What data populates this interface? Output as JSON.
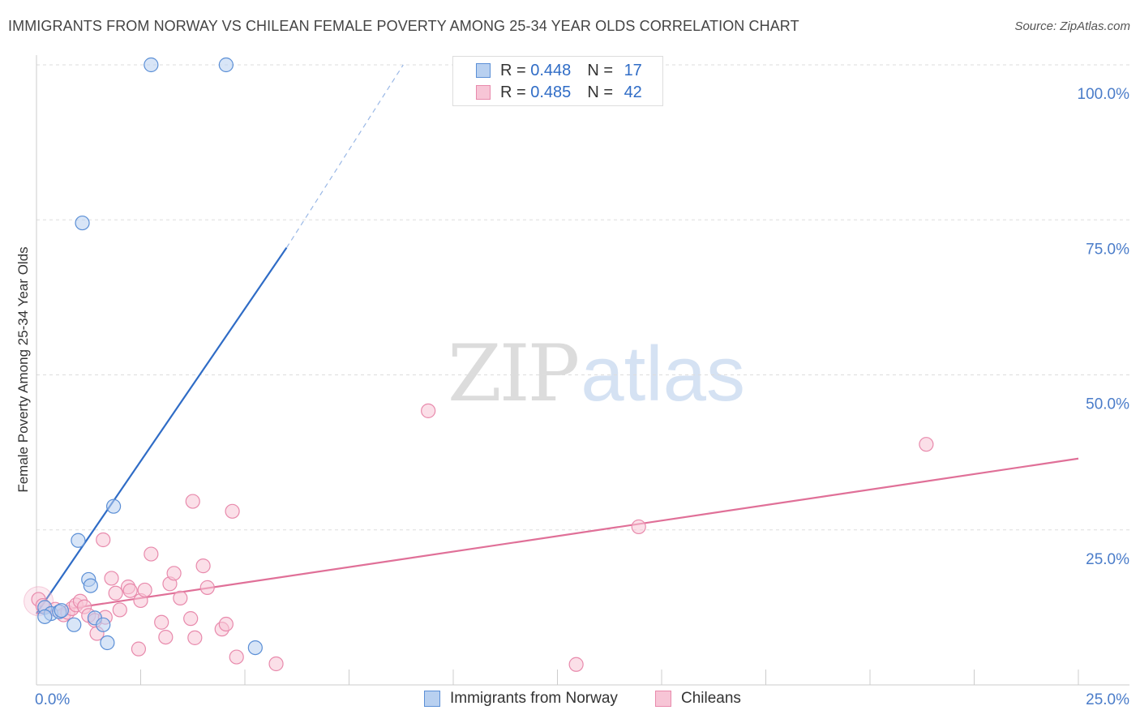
{
  "title": "IMMIGRANTS FROM NORWAY VS CHILEAN FEMALE POVERTY AMONG 25-34 YEAR OLDS CORRELATION CHART",
  "source": "Source: ZipAtlas.com",
  "watermark": {
    "zip": "ZIP",
    "atlas": "atlas"
  },
  "legend": [
    {
      "r_label": "R =",
      "r_value": "0.448",
      "n_label": "N =",
      "n_value": "17"
    },
    {
      "r_label": "R =",
      "r_value": "0.485",
      "n_label": "N =",
      "n_value": "42"
    }
  ],
  "chart_data": {
    "type": "scatter",
    "xlabel": "",
    "ylabel": "Female Poverty Among 25-34 Year Olds",
    "xlim": [
      0,
      25
    ],
    "ylim": [
      0,
      100
    ],
    "x_tick_labels": [
      {
        "value": 0,
        "label": "0.0%"
      },
      {
        "value": 25,
        "label": "25.0%"
      }
    ],
    "y_tick_labels": [
      {
        "value": 25,
        "label": "25.0%"
      },
      {
        "value": 50,
        "label": "50.0%"
      },
      {
        "value": 75,
        "label": "75.0%"
      },
      {
        "value": 100,
        "label": "100.0%"
      }
    ],
    "x_minor_ticks": [
      2.5,
      5,
      7.5,
      10,
      12.5,
      15,
      17.5,
      20,
      22.5,
      25
    ],
    "grid": true,
    "legend_position": "top-center",
    "series": [
      {
        "name": "Immigrants from Norway",
        "color": "#5b8fd6",
        "fill": "#b8d0f0",
        "trend": {
          "x0": 0.0,
          "y0": 11.5,
          "x1": 6.0,
          "y1": 70.5,
          "dash_to_x": 8.8,
          "dash_to_y": 100,
          "color": "#2f6cc6"
        },
        "points": [
          {
            "x": 2.75,
            "y": 100
          },
          {
            "x": 4.55,
            "y": 100
          },
          {
            "x": 1.1,
            "y": 74.5
          },
          {
            "x": 1.85,
            "y": 28.8
          },
          {
            "x": 1.0,
            "y": 23.3
          },
          {
            "x": 1.25,
            "y": 17.0
          },
          {
            "x": 1.3,
            "y": 16.0
          },
          {
            "x": 0.2,
            "y": 12.5
          },
          {
            "x": 0.35,
            "y": 11.5
          },
          {
            "x": 0.55,
            "y": 11.8
          },
          {
            "x": 0.6,
            "y": 12.0
          },
          {
            "x": 0.2,
            "y": 11.0
          },
          {
            "x": 1.4,
            "y": 10.8
          },
          {
            "x": 0.9,
            "y": 9.7
          },
          {
            "x": 1.6,
            "y": 9.7
          },
          {
            "x": 1.7,
            "y": 6.8
          },
          {
            "x": 5.25,
            "y": 6.0
          }
        ]
      },
      {
        "name": "Chileans",
        "color": "#e88aac",
        "fill": "#f7c5d6",
        "trend": {
          "x0": 0.0,
          "y0": 11.5,
          "x1": 25.0,
          "y1": 36.5,
          "color": "#e07098"
        },
        "points": [
          {
            "x": 0.05,
            "y": 13.8
          },
          {
            "x": 0.15,
            "y": 12.8
          },
          {
            "x": 0.45,
            "y": 12.2
          },
          {
            "x": 0.65,
            "y": 11.3
          },
          {
            "x": 0.75,
            "y": 11.7
          },
          {
            "x": 0.85,
            "y": 12.3
          },
          {
            "x": 0.95,
            "y": 12.9
          },
          {
            "x": 1.05,
            "y": 13.5
          },
          {
            "x": 1.15,
            "y": 12.6
          },
          {
            "x": 1.25,
            "y": 11.2
          },
          {
            "x": 1.4,
            "y": 10.4
          },
          {
            "x": 1.45,
            "y": 8.3
          },
          {
            "x": 1.6,
            "y": 23.4
          },
          {
            "x": 1.65,
            "y": 10.9
          },
          {
            "x": 1.8,
            "y": 17.2
          },
          {
            "x": 1.9,
            "y": 14.8
          },
          {
            "x": 2.0,
            "y": 12.1
          },
          {
            "x": 2.2,
            "y": 15.8
          },
          {
            "x": 2.25,
            "y": 15.2
          },
          {
            "x": 2.45,
            "y": 5.8
          },
          {
            "x": 2.5,
            "y": 13.6
          },
          {
            "x": 2.6,
            "y": 15.3
          },
          {
            "x": 2.75,
            "y": 21.1
          },
          {
            "x": 3.0,
            "y": 10.1
          },
          {
            "x": 3.1,
            "y": 7.7
          },
          {
            "x": 3.2,
            "y": 16.3
          },
          {
            "x": 3.3,
            "y": 18.0
          },
          {
            "x": 3.45,
            "y": 14.0
          },
          {
            "x": 3.7,
            "y": 10.7
          },
          {
            "x": 3.75,
            "y": 29.6
          },
          {
            "x": 3.8,
            "y": 7.6
          },
          {
            "x": 4.0,
            "y": 19.2
          },
          {
            "x": 4.1,
            "y": 15.7
          },
          {
            "x": 4.45,
            "y": 9.0
          },
          {
            "x": 4.55,
            "y": 9.8
          },
          {
            "x": 4.7,
            "y": 28.0
          },
          {
            "x": 4.8,
            "y": 4.5
          },
          {
            "x": 5.75,
            "y": 3.4
          },
          {
            "x": 9.4,
            "y": 44.2
          },
          {
            "x": 12.95,
            "y": 3.3
          },
          {
            "x": 14.45,
            "y": 25.5
          },
          {
            "x": 21.35,
            "y": 38.8
          }
        ]
      }
    ]
  }
}
